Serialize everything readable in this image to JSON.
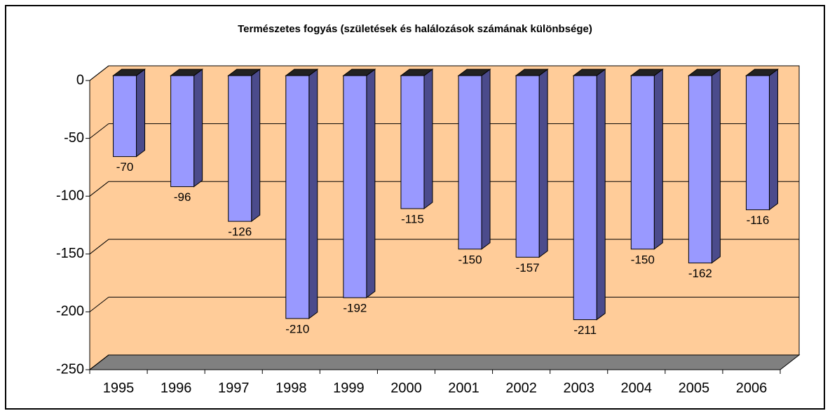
{
  "chart_data": {
    "type": "bar3d",
    "title": "Természetes fogyás (születések és halálozások számának különbsége)",
    "categories": [
      "1995",
      "1996",
      "1997",
      "1998",
      "1999",
      "2000",
      "2001",
      "2002",
      "2003",
      "2004",
      "2005",
      "2006"
    ],
    "values": [
      -70,
      -96,
      -126,
      -210,
      -192,
      -115,
      -150,
      -157,
      -211,
      -150,
      -162,
      -116
    ],
    "color": "#9999ff",
    "ylim": [
      -250,
      0
    ],
    "yticks": [
      0,
      -50,
      -100,
      -150,
      -200,
      -250
    ],
    "grid": true
  }
}
